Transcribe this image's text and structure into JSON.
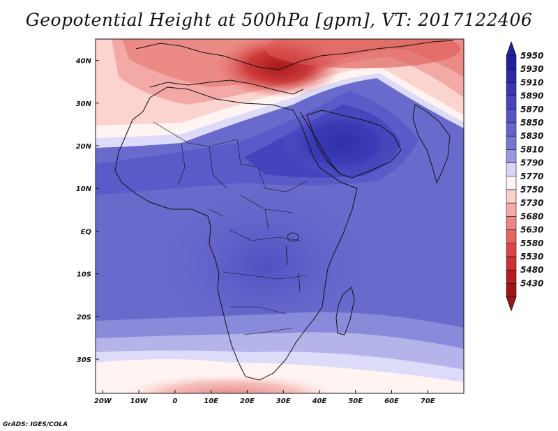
{
  "title": "Geopotential Height at 500hPa [gpm], VT: 2017122406",
  "footer": "GrADS: IGES/COLA",
  "map": {
    "lon_range": [
      -22,
      80
    ],
    "lat_range": [
      -38,
      45
    ],
    "x_ticks": [
      "20W",
      "10W",
      "0",
      "10E",
      "20E",
      "30E",
      "40E",
      "50E",
      "60E",
      "70E"
    ],
    "y_ticks": [
      "40N",
      "30N",
      "20N",
      "10N",
      "EQ",
      "10S",
      "20S",
      "30S"
    ]
  },
  "colorbar": {
    "levels": [
      "5950",
      "5930",
      "5910",
      "5890",
      "5870",
      "5850",
      "5830",
      "5810",
      "5790",
      "5770",
      "5750",
      "5730",
      "5680",
      "5630",
      "5580",
      "5530",
      "5480",
      "5430"
    ],
    "colors": [
      "#2020a0",
      "#2a2aa8",
      "#3636b4",
      "#4545be",
      "#5454c6",
      "#6464cc",
      "#7676d4",
      "#9898e0",
      "#d6d6f6",
      "#fff4f2",
      "#fad0cc",
      "#f4aaa6",
      "#ec8682",
      "#e46460",
      "#dc4646",
      "#cc3030",
      "#b41e1e",
      "#a01414"
    ]
  }
}
